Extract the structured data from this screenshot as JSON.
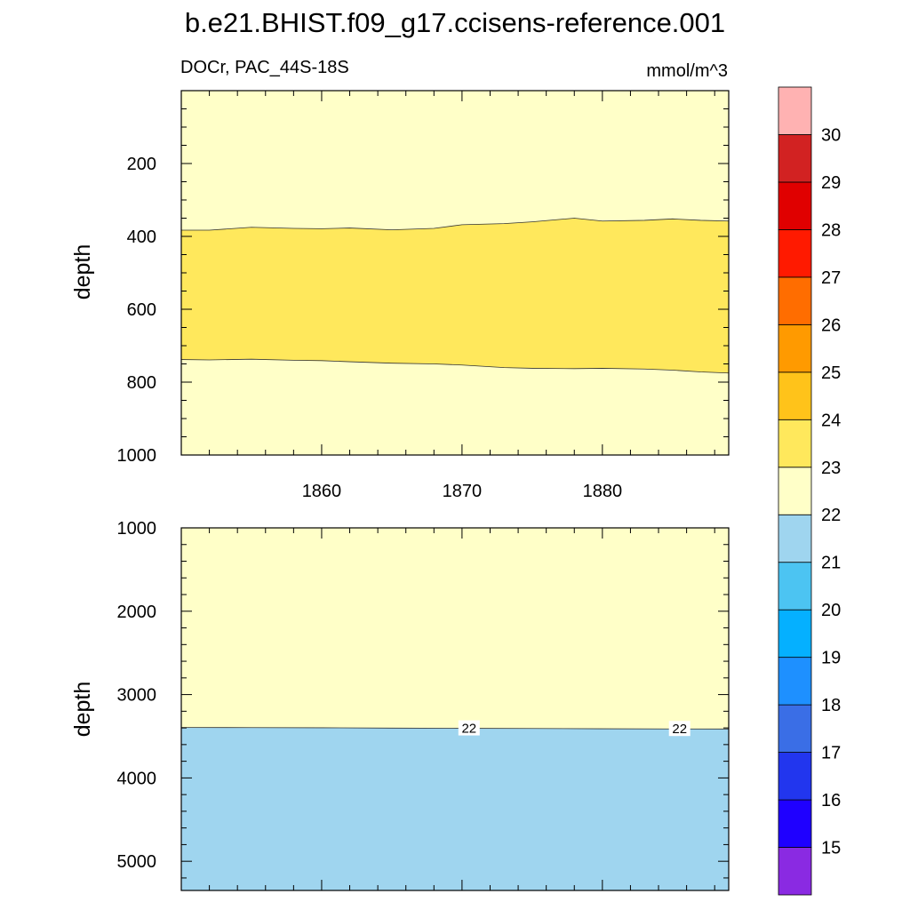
{
  "title": "b.e21.BHIST.f09_g17.ccisens-reference.001",
  "chart_data": [
    {
      "type": "heatmap",
      "panel": "upper",
      "left_label": "DOCr, PAC_44S-18S",
      "right_label": "mmol/m^3",
      "xlabel": "",
      "ylabel": "depth",
      "xlim": [
        1850,
        1889
      ],
      "ylim": [
        0,
        1000
      ],
      "y_reversed": true,
      "x_ticks": [
        1860,
        1870,
        1880
      ],
      "y_ticks": [
        200,
        400,
        600,
        800,
        1000
      ],
      "background_level": "22-23",
      "bands": [
        {
          "name": "23-24",
          "top_depth_x": [
            1850,
            1852,
            1855,
            1858,
            1860,
            1862,
            1865,
            1868,
            1870,
            1873,
            1875,
            1878,
            1880,
            1883,
            1885,
            1887,
            1889
          ],
          "top_depth": [
            383,
            383,
            375,
            378,
            379,
            377,
            382,
            378,
            368,
            365,
            360,
            350,
            358,
            356,
            352,
            356,
            358
          ],
          "bottom_depth": [
            738,
            739,
            737,
            740,
            741,
            744,
            748,
            750,
            753,
            760,
            762,
            763,
            762,
            764,
            767,
            772,
            775
          ]
        }
      ],
      "contour_labels": []
    },
    {
      "type": "heatmap",
      "panel": "lower",
      "xlabel": "",
      "ylabel": "depth",
      "xlim": [
        1850,
        1889
      ],
      "ylim": [
        1000,
        5350
      ],
      "y_reversed": true,
      "y_ticks": [
        1000,
        2000,
        3000,
        4000,
        5000
      ],
      "upper_level": "22-23",
      "lower_level": "21-22",
      "boundary_x": [
        1850,
        1855,
        1860,
        1865,
        1870,
        1875,
        1880,
        1885,
        1889
      ],
      "boundary_depth": [
        3395,
        3396,
        3398,
        3402,
        3405,
        3407,
        3410,
        3412,
        3413
      ],
      "contour_labels": [
        {
          "x": 1870.5,
          "depth": 3405,
          "text": "22"
        },
        {
          "x": 1885.5,
          "depth": 3412,
          "text": "22"
        }
      ]
    }
  ],
  "colorbar": {
    "colors": [
      "#8a2ae2",
      "#1f00ff",
      "#2236ee",
      "#3a6ee6",
      "#1e90ff",
      "#05b0ff",
      "#4cc4f2",
      "#9fd5ef",
      "#ffffc8",
      "#ffe85c",
      "#ffc31a",
      "#ff9a00",
      "#ff6d00",
      "#ff1a00",
      "#e00000",
      "#d22222",
      "#ffb2b2"
    ],
    "labels": [
      "15",
      "16",
      "17",
      "18",
      "19",
      "20",
      "21",
      "22",
      "23",
      "24",
      "25",
      "26",
      "27",
      "28",
      "29",
      "30"
    ]
  },
  "level_colors": {
    "21-22": "#9fd5ef",
    "22-23": "#ffffc8",
    "23-24": "#ffe85c"
  }
}
